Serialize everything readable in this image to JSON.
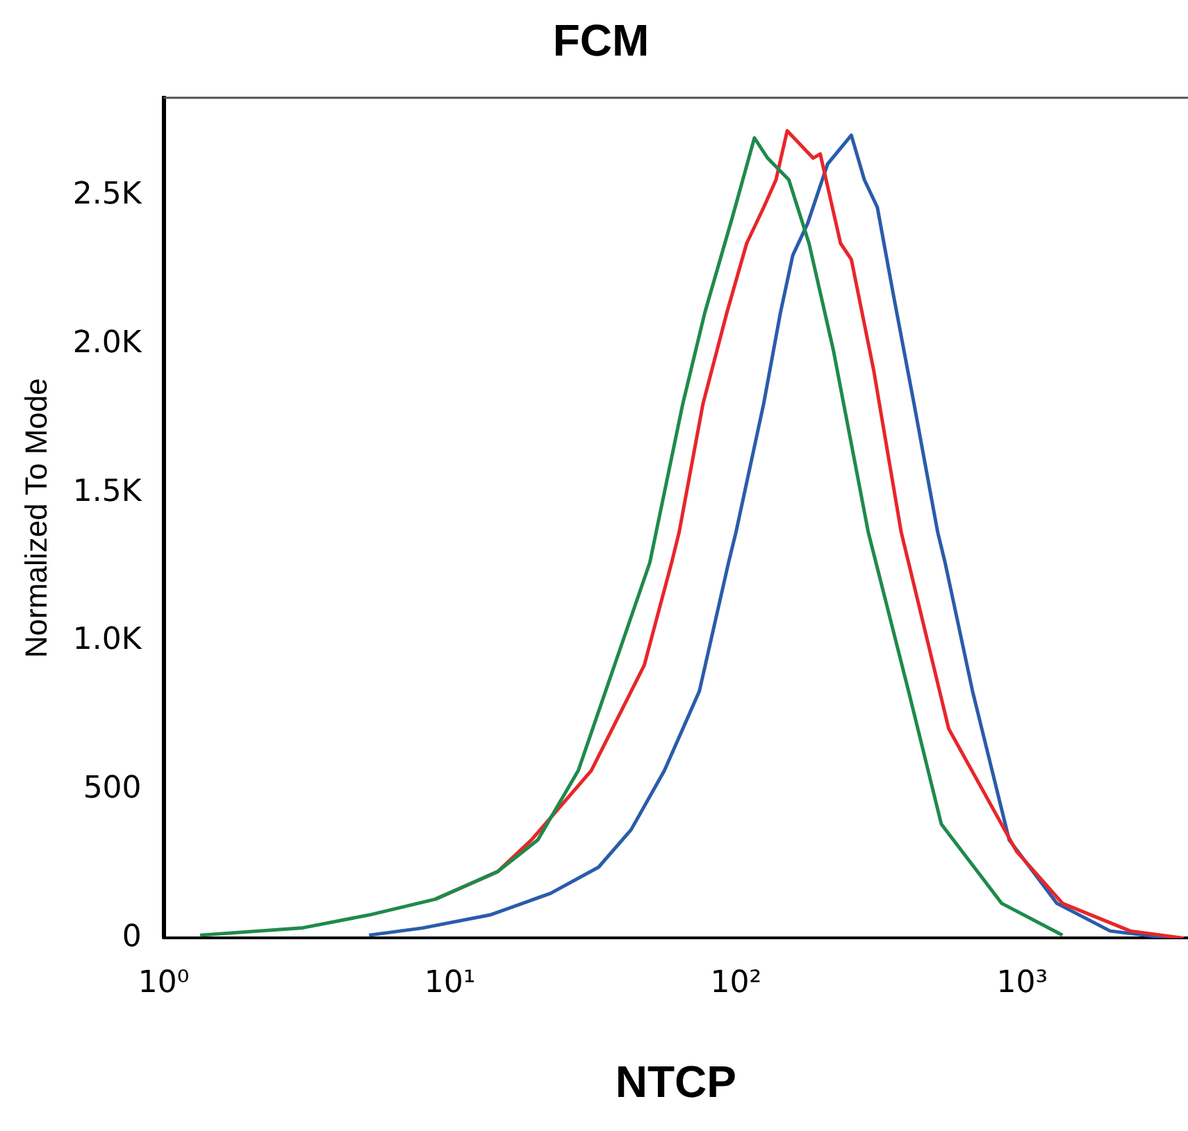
{
  "chart_data": {
    "type": "line",
    "title": "FCM",
    "xlabel": "NTCP",
    "ylabel": "Normalized To Mode",
    "log": "x",
    "grid": false,
    "legend": false,
    "marker": "none",
    "line_style": "solid",
    "xlim": [
      1,
      3800
    ],
    "xticks": [
      {
        "value": 1,
        "label": "10⁰"
      },
      {
        "value": 10,
        "label": "10¹"
      },
      {
        "value": 100,
        "label": "10²"
      },
      {
        "value": 1000,
        "label": "10³"
      }
    ],
    "ylim": [
      0,
      2830
    ],
    "yticks": [
      0,
      500,
      {
        "value": 1000,
        "label": "1.0K"
      },
      {
        "value": 1500,
        "label": "1.5K"
      },
      {
        "value": 2000,
        "label": "2.0K"
      },
      {
        "value": 2500,
        "label": "2.5K"
      }
    ],
    "series": [
      {
        "color": "#1f8a4c",
        "x": [
          1.34,
          3.03,
          5.22,
          8.89,
          14.7,
          20.3,
          28.1,
          50,
          65.2,
          77.8,
          97.1,
          116,
          129,
          153,
          180,
          219,
          290,
          401,
          522,
          849,
          1384
        ],
        "values": [
          10,
          34,
          78,
          131,
          224,
          331,
          564,
          1265,
          1800,
          2106,
          2427,
          2695,
          2627,
          2554,
          2340,
          1980,
          1367,
          832,
          384,
          117,
          10
        ]
      },
      {
        "color": "#e8262a",
        "x": [
          8.89,
          14.7,
          19.3,
          31.2,
          47.8,
          59.6,
          63.3,
          76.7,
          92.9,
          109,
          125,
          138,
          151,
          186,
          197,
          232,
          253,
          303,
          378,
          401,
          554,
          957,
          1384,
          2390,
          3665
        ],
        "values": [
          131,
          224,
          331,
          564,
          919,
          1265,
          1367,
          1800,
          2106,
          2340,
          2461,
          2554,
          2719,
          2627,
          2641,
          2340,
          2286,
          1912,
          1367,
          1265,
          705,
          292,
          117,
          24,
          0
        ]
      },
      {
        "color": "#2a5caa",
        "x": [
          5.22,
          8.01,
          13.8,
          22.5,
          33.1,
          43.0,
          56.2,
          74.5,
          94.2,
          100,
          125,
          143,
          158,
          178,
          209,
          253,
          281,
          312,
          356,
          419,
          507,
          538,
          671,
          901,
          1324,
          2032,
          3304
        ],
        "values": [
          10,
          34,
          78,
          151,
          239,
          365,
          564,
          832,
          1265,
          1367,
          1800,
          2106,
          2300,
          2407,
          2607,
          2704,
          2554,
          2461,
          2160,
          1800,
          1367,
          1265,
          832,
          331,
          117,
          24,
          0
        ]
      }
    ]
  }
}
